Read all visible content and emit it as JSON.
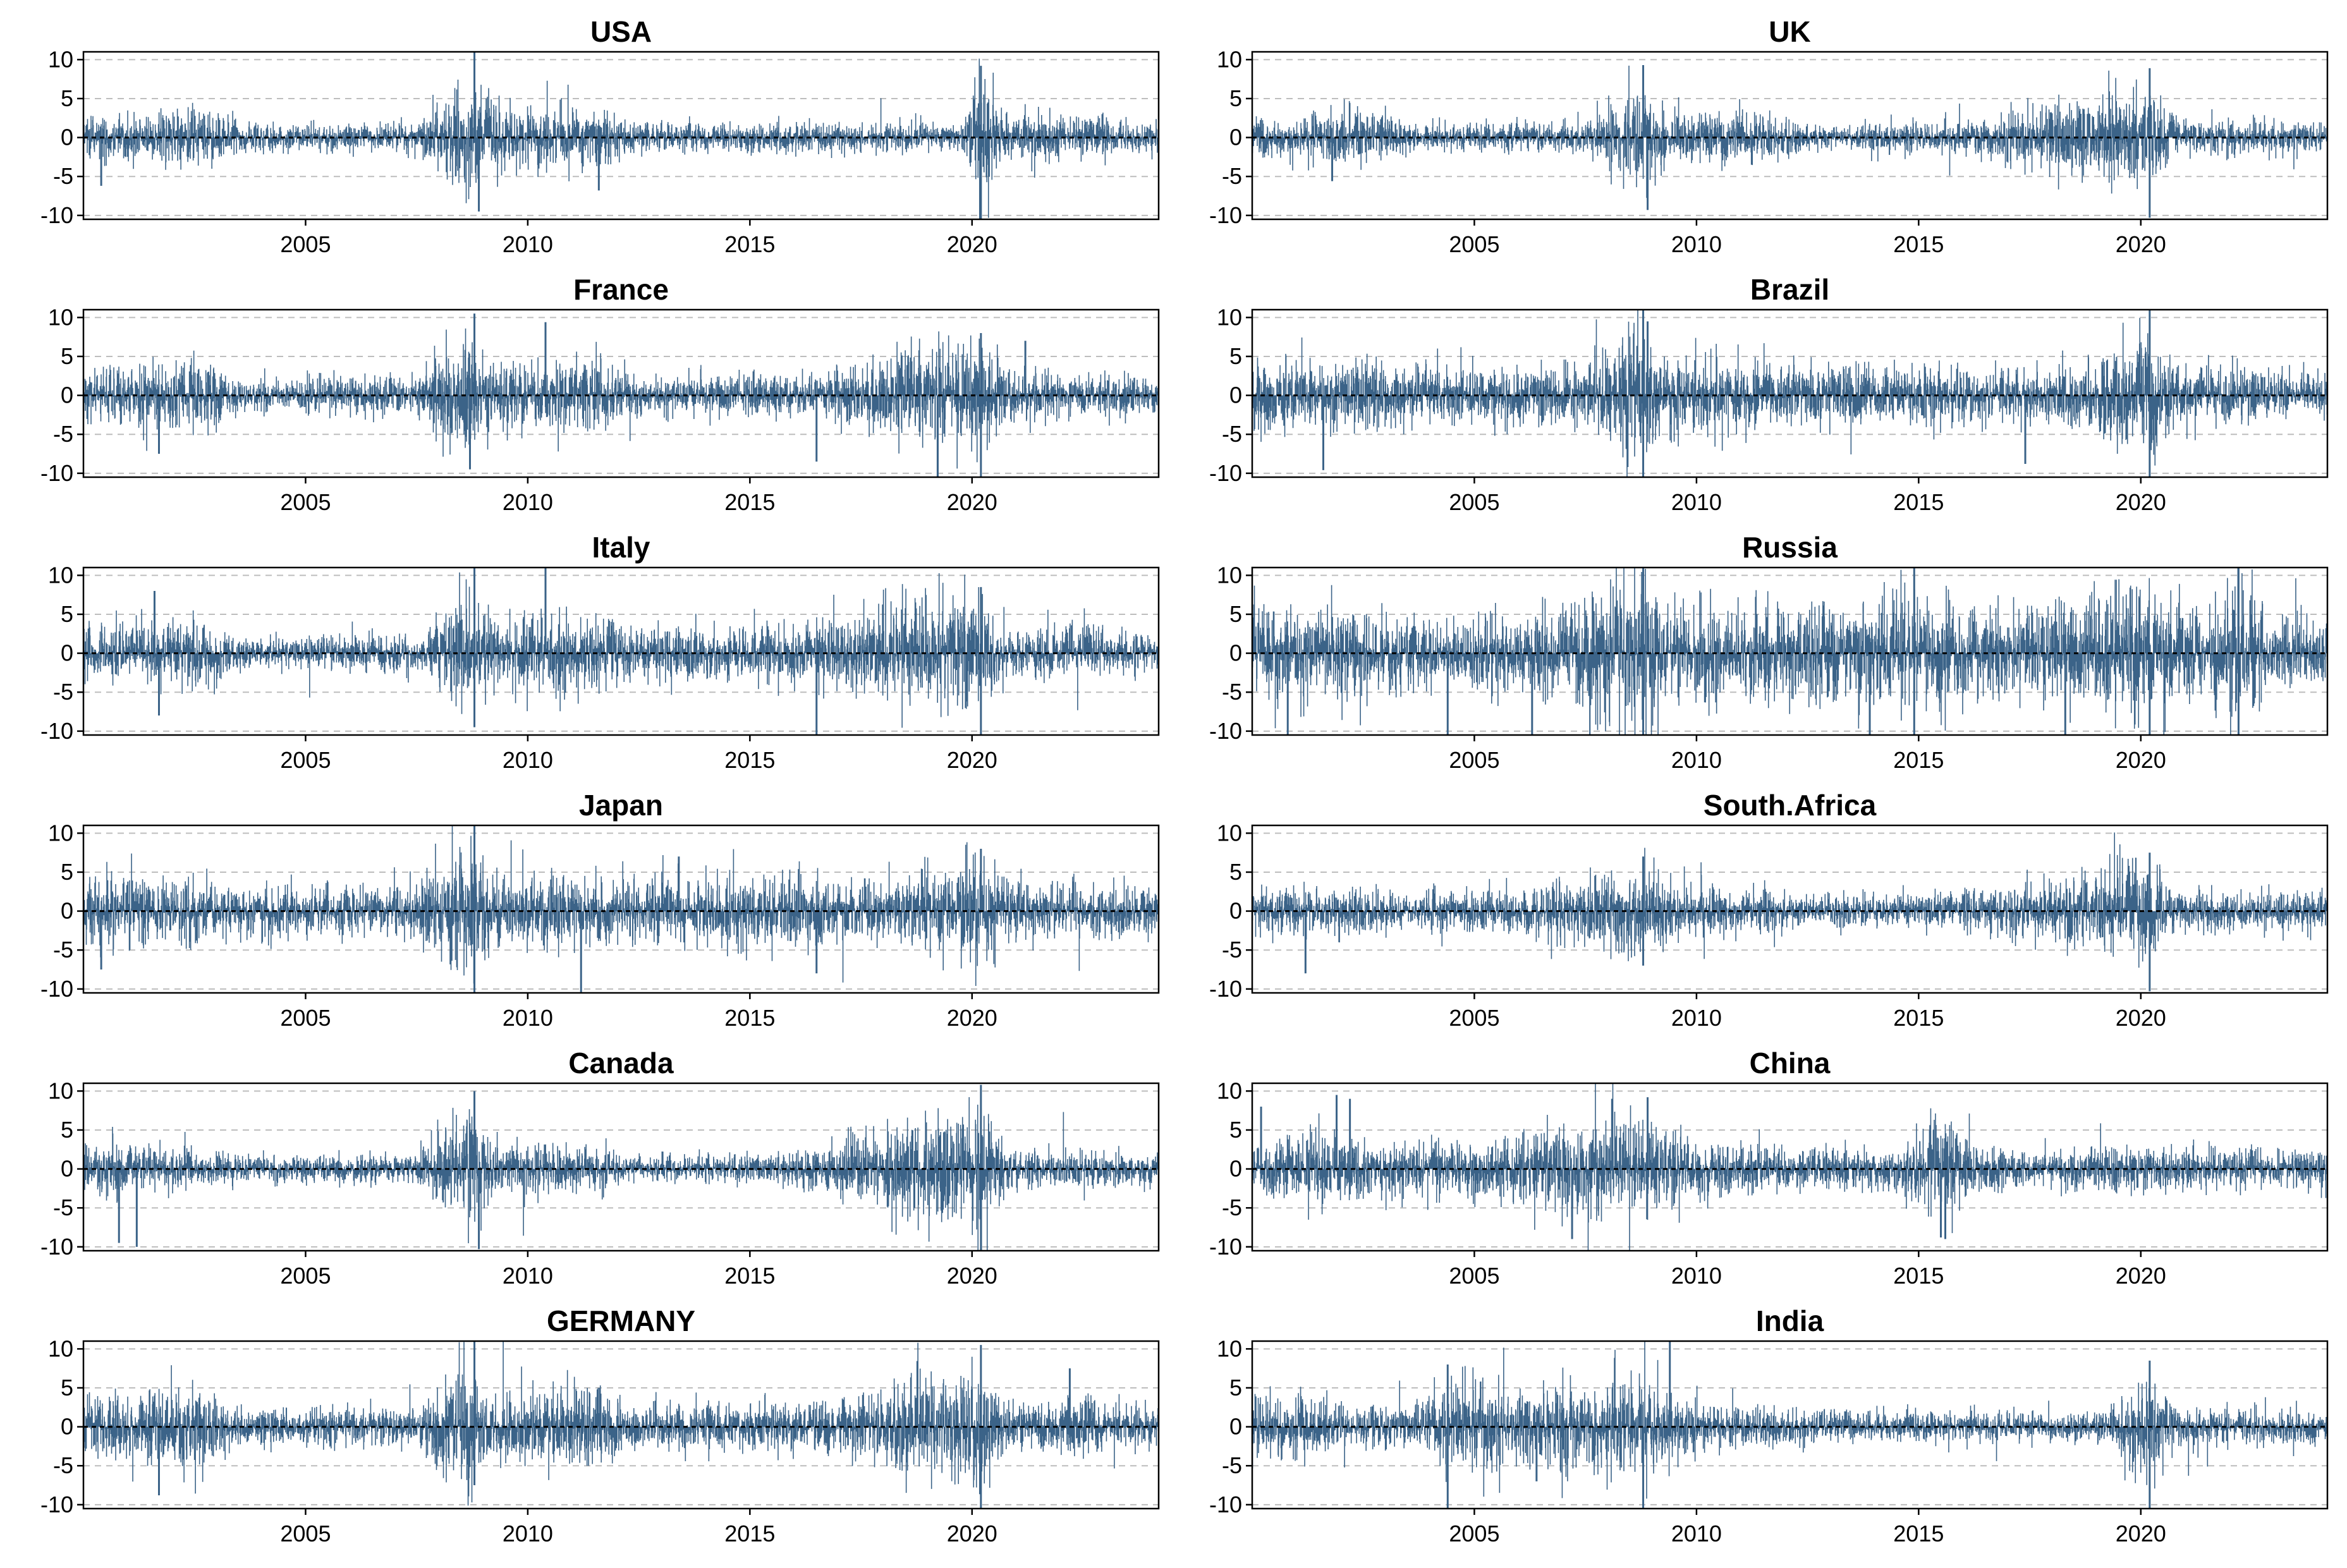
{
  "chart_data": {
    "type": "line",
    "color": "#3b6388",
    "x_range": [
      2000.0,
      2024.2
    ],
    "ylim": [
      -10.5,
      11
    ],
    "y_ticks": [
      -10,
      -5,
      0,
      5,
      10
    ],
    "x_ticks": [
      2005,
      2010,
      2015,
      2020
    ],
    "y_grid": "dashed",
    "zero_line": "dashed black",
    "panels": [
      {
        "title": "USA",
        "base": 1.3,
        "volatility": [
          [
            2000.0,
            1.6
          ],
          [
            2002.5,
            2.2
          ],
          [
            2003.6,
            1.0
          ],
          [
            2007.5,
            1.1
          ],
          [
            2008.6,
            4.5
          ],
          [
            2009.3,
            2.2
          ],
          [
            2011.6,
            2.4
          ],
          [
            2012.5,
            1.0
          ],
          [
            2018.0,
            1.1
          ],
          [
            2019.8,
            1.0
          ],
          [
            2020.2,
            5.2
          ],
          [
            2020.8,
            1.6
          ],
          [
            2022.3,
            1.8
          ],
          [
            2024.2,
            1.0
          ]
        ],
        "spikes": [
          [
            2008.8,
            11
          ],
          [
            2008.9,
            -9.5
          ],
          [
            2020.2,
            9.2
          ],
          [
            2020.2,
            -10.5
          ],
          [
            2011.6,
            -6.8
          ],
          [
            2000.4,
            -6.2
          ]
        ]
      },
      {
        "title": "UK",
        "base": 1.1,
        "volatility": [
          [
            2000.0,
            1.4
          ],
          [
            2002.5,
            2.4
          ],
          [
            2003.6,
            1.0
          ],
          [
            2007.5,
            1.1
          ],
          [
            2008.6,
            4.2
          ],
          [
            2009.3,
            2.0
          ],
          [
            2011.6,
            1.8
          ],
          [
            2012.5,
            0.9
          ],
          [
            2016.4,
            1.3
          ],
          [
            2020.2,
            4.2
          ],
          [
            2020.8,
            1.4
          ],
          [
            2022.3,
            1.3
          ],
          [
            2024.2,
            1.0
          ]
        ],
        "spikes": [
          [
            2008.8,
            9.3
          ],
          [
            2008.9,
            -9.3
          ],
          [
            2020.2,
            8.9
          ],
          [
            2020.2,
            -10.3
          ],
          [
            2001.8,
            -5.6
          ]
        ]
      },
      {
        "title": "France",
        "base": 1.5,
        "volatility": [
          [
            2000.0,
            2.0
          ],
          [
            2002.5,
            2.8
          ],
          [
            2003.6,
            1.2
          ],
          [
            2007.5,
            1.5
          ],
          [
            2008.6,
            4.6
          ],
          [
            2009.3,
            2.6
          ],
          [
            2011.6,
            2.8
          ],
          [
            2012.5,
            1.5
          ],
          [
            2016.4,
            1.6
          ],
          [
            2020.2,
            4.6
          ],
          [
            2020.8,
            1.8
          ],
          [
            2022.3,
            1.8
          ],
          [
            2024.2,
            1.4
          ]
        ],
        "spikes": [
          [
            2008.8,
            10.5
          ],
          [
            2008.7,
            -9.5
          ],
          [
            2010.4,
            9.4
          ],
          [
            2016.5,
            -8.5
          ],
          [
            2020.2,
            8
          ],
          [
            2020.2,
            -10.5
          ],
          [
            2001.7,
            -7.5
          ],
          [
            2021.2,
            7
          ]
        ]
      },
      {
        "title": "Brazil",
        "base": 1.8,
        "volatility": [
          [
            2000.0,
            2.8
          ],
          [
            2002.5,
            2.6
          ],
          [
            2003.6,
            2.0
          ],
          [
            2007.5,
            2.2
          ],
          [
            2008.6,
            5.0
          ],
          [
            2009.3,
            2.8
          ],
          [
            2011.6,
            2.4
          ],
          [
            2015.0,
            2.2
          ],
          [
            2018.0,
            1.8
          ],
          [
            2020.2,
            5.0
          ],
          [
            2020.8,
            2.2
          ],
          [
            2024.2,
            1.6
          ]
        ],
        "spikes": [
          [
            2008.8,
            11
          ],
          [
            2008.8,
            -10.5
          ],
          [
            2017.4,
            -8.8
          ],
          [
            2020.2,
            11
          ],
          [
            2020.2,
            -10.5
          ],
          [
            2001.6,
            -9.6
          ],
          [
            2008.9,
            9.5
          ]
        ]
      },
      {
        "title": "Italy",
        "base": 1.6,
        "volatility": [
          [
            2000.0,
            2.0
          ],
          [
            2002.5,
            2.6
          ],
          [
            2003.6,
            1.1
          ],
          [
            2007.5,
            1.5
          ],
          [
            2008.6,
            4.8
          ],
          [
            2009.3,
            2.6
          ],
          [
            2011.6,
            3.0
          ],
          [
            2012.5,
            1.8
          ],
          [
            2016.4,
            2.2
          ],
          [
            2020.2,
            4.8
          ],
          [
            2020.8,
            1.8
          ],
          [
            2022.3,
            2.0
          ],
          [
            2024.2,
            1.4
          ]
        ],
        "spikes": [
          [
            2008.8,
            11
          ],
          [
            2008.8,
            -9.5
          ],
          [
            2010.4,
            11
          ],
          [
            2016.5,
            -10.5
          ],
          [
            2020.2,
            8.5
          ],
          [
            2020.2,
            -10.5
          ],
          [
            2001.7,
            -8
          ],
          [
            2001.6,
            8
          ]
        ]
      },
      {
        "title": "Russia",
        "base": 2.4,
        "volatility": [
          [
            2000.0,
            3.8
          ],
          [
            2002.5,
            3.0
          ],
          [
            2004.5,
            2.6
          ],
          [
            2006.5,
            3.0
          ],
          [
            2008.6,
            6.5
          ],
          [
            2009.3,
            4.0
          ],
          [
            2011.6,
            3.2
          ],
          [
            2014.8,
            4.5
          ],
          [
            2016.4,
            2.8
          ],
          [
            2020.2,
            5.0
          ],
          [
            2021.5,
            2.6
          ],
          [
            2022.2,
            6.5
          ],
          [
            2022.8,
            3.0
          ],
          [
            2024.2,
            2.2
          ]
        ],
        "spikes": [
          [
            2008.8,
            11
          ],
          [
            2008.8,
            -10.5
          ],
          [
            2014.9,
            11
          ],
          [
            2014.9,
            -10.5
          ],
          [
            2022.2,
            11
          ],
          [
            2022.2,
            -10.5
          ],
          [
            2000.8,
            -10.5
          ],
          [
            2004.4,
            -10.5
          ],
          [
            2006.3,
            -10.5
          ],
          [
            2013.9,
            -10.5
          ],
          [
            2018.3,
            -10.5
          ],
          [
            2020.2,
            -10.5
          ]
        ]
      },
      {
        "title": "Japan",
        "base": 1.8,
        "volatility": [
          [
            2000.0,
            2.4
          ],
          [
            2002.5,
            2.4
          ],
          [
            2003.6,
            1.8
          ],
          [
            2007.5,
            2.0
          ],
          [
            2008.6,
            5.2
          ],
          [
            2009.3,
            2.6
          ],
          [
            2011.3,
            2.8
          ],
          [
            2013.5,
            2.6
          ],
          [
            2016.4,
            2.8
          ],
          [
            2018.0,
            2.0
          ],
          [
            2020.2,
            4.2
          ],
          [
            2020.8,
            2.2
          ],
          [
            2024.2,
            2.0
          ]
        ],
        "spikes": [
          [
            2008.8,
            11
          ],
          [
            2008.8,
            -10.5
          ],
          [
            2011.2,
            -10.5
          ],
          [
            2016.5,
            -8
          ],
          [
            2020.2,
            8
          ],
          [
            2013.4,
            7
          ],
          [
            2000.4,
            -7.5
          ]
        ]
      },
      {
        "title": "South.Africa",
        "base": 1.3,
        "volatility": [
          [
            2000.0,
            1.8
          ],
          [
            2002.5,
            1.8
          ],
          [
            2003.6,
            1.3
          ],
          [
            2006.3,
            1.8
          ],
          [
            2008.6,
            3.6
          ],
          [
            2009.3,
            2.2
          ],
          [
            2011.6,
            1.6
          ],
          [
            2012.5,
            1.2
          ],
          [
            2016.4,
            1.5
          ],
          [
            2020.2,
            4.0
          ],
          [
            2020.8,
            1.5
          ],
          [
            2024.2,
            1.3
          ]
        ],
        "spikes": [
          [
            2008.8,
            7
          ],
          [
            2008.8,
            -7
          ],
          [
            2020.2,
            7.5
          ],
          [
            2020.2,
            -10.3
          ],
          [
            2001.2,
            -8
          ]
        ]
      },
      {
        "title": "Canada",
        "base": 1.2,
        "volatility": [
          [
            2000.0,
            2.2
          ],
          [
            2001.5,
            1.8
          ],
          [
            2003.6,
            1.0
          ],
          [
            2007.5,
            1.1
          ],
          [
            2008.6,
            4.6
          ],
          [
            2009.3,
            2.2
          ],
          [
            2011.6,
            1.8
          ],
          [
            2012.5,
            0.9
          ],
          [
            2016.0,
            1.2
          ],
          [
            2020.2,
            5.0
          ],
          [
            2020.8,
            1.5
          ],
          [
            2022.3,
            1.5
          ],
          [
            2024.2,
            1.1
          ]
        ],
        "spikes": [
          [
            2008.8,
            10
          ],
          [
            2008.9,
            -10.3
          ],
          [
            2020.2,
            10.8
          ],
          [
            2020.2,
            -10.5
          ],
          [
            2000.8,
            -9.5
          ],
          [
            2001.2,
            -10
          ]
        ]
      },
      {
        "title": "China",
        "base": 1.8,
        "volatility": [
          [
            2000.0,
            2.2
          ],
          [
            2001.5,
            2.6
          ],
          [
            2002.5,
            2.0
          ],
          [
            2005.5,
            2.2
          ],
          [
            2006.9,
            3.6
          ],
          [
            2008.0,
            3.8
          ],
          [
            2009.0,
            3.2
          ],
          [
            2010.5,
            2.2
          ],
          [
            2012.5,
            1.6
          ],
          [
            2014.5,
            1.4
          ],
          [
            2015.3,
            3.8
          ],
          [
            2016.0,
            2.6
          ],
          [
            2017.0,
            1.2
          ],
          [
            2019.0,
            1.8
          ],
          [
            2020.2,
            1.6
          ],
          [
            2024.2,
            1.4
          ]
        ],
        "spikes": [
          [
            2001.9,
            9.5
          ],
          [
            2002.2,
            9
          ],
          [
            2007.2,
            -9
          ],
          [
            2008.1,
            9
          ],
          [
            2008.9,
            9.2
          ],
          [
            2015.5,
            -8.8
          ],
          [
            2015.6,
            -9
          ],
          [
            2000.2,
            8
          ]
        ]
      },
      {
        "title": "GERMANY",
        "base": 1.6,
        "volatility": [
          [
            2000.0,
            2.2
          ],
          [
            2002.5,
            3.2
          ],
          [
            2003.6,
            1.4
          ],
          [
            2007.5,
            1.5
          ],
          [
            2008.6,
            4.8
          ],
          [
            2009.3,
            2.6
          ],
          [
            2011.6,
            3.0
          ],
          [
            2012.5,
            1.6
          ],
          [
            2016.4,
            1.8
          ],
          [
            2020.2,
            4.6
          ],
          [
            2020.8,
            1.8
          ],
          [
            2022.3,
            2.2
          ],
          [
            2024.2,
            1.4
          ]
        ],
        "spikes": [
          [
            2008.8,
            11
          ],
          [
            2008.8,
            -7.5
          ],
          [
            2020.2,
            10.5
          ],
          [
            2020.2,
            -10.5
          ],
          [
            2001.7,
            -8.8
          ],
          [
            2022.2,
            7.5
          ]
        ]
      },
      {
        "title": "India",
        "base": 1.6,
        "volatility": [
          [
            2000.0,
            2.8
          ],
          [
            2002.5,
            1.6
          ],
          [
            2003.8,
            1.8
          ],
          [
            2004.4,
            3.2
          ],
          [
            2006.4,
            3.2
          ],
          [
            2007.5,
            2.8
          ],
          [
            2008.6,
            4.8
          ],
          [
            2009.3,
            3.0
          ],
          [
            2010.5,
            1.6
          ],
          [
            2014.0,
            1.2
          ],
          [
            2019.0,
            1.0
          ],
          [
            2020.2,
            4.0
          ],
          [
            2020.8,
            1.6
          ],
          [
            2024.2,
            1.2
          ]
        ],
        "spikes": [
          [
            2004.4,
            8
          ],
          [
            2004.4,
            -10.5
          ],
          [
            2008.8,
            -10.5
          ],
          [
            2009.4,
            11
          ],
          [
            2020.2,
            8.5
          ],
          [
            2020.2,
            -10.5
          ],
          [
            2006.4,
            -7
          ]
        ]
      }
    ]
  }
}
